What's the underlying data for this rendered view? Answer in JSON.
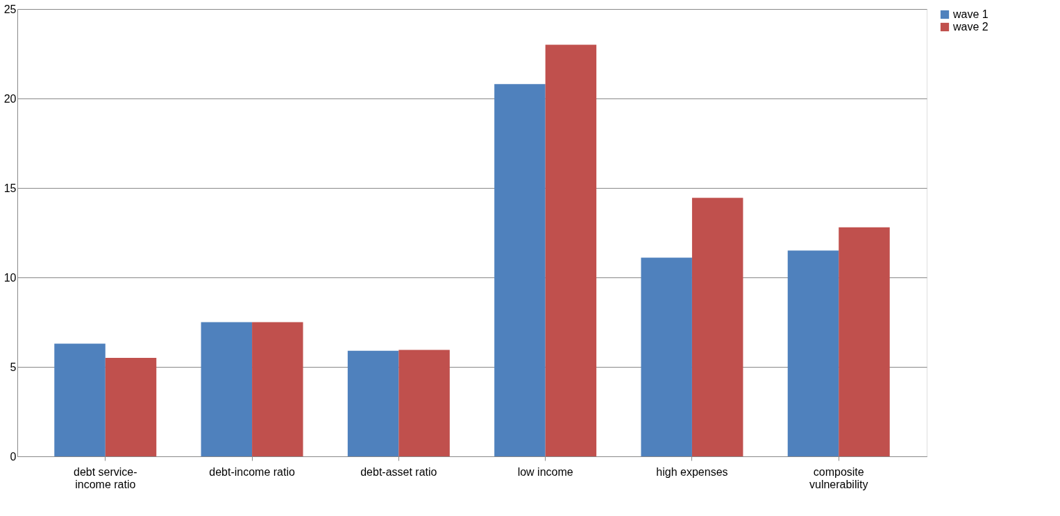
{
  "chart_data": {
    "type": "bar",
    "categories": [
      "debt service-income ratio",
      "debt-income ratio",
      "debt-asset ratio",
      "low income",
      "high expenses",
      "composite vulnerability"
    ],
    "series": [
      {
        "name": "wave 1",
        "color": "#4f81bd",
        "values": [
          6.3,
          7.5,
          5.9,
          20.8,
          11.1,
          11.5
        ]
      },
      {
        "name": "wave 2",
        "color": "#c0504d",
        "values": [
          5.5,
          7.5,
          5.95,
          23.0,
          14.45,
          12.8
        ]
      }
    ],
    "ylim": [
      0,
      25
    ],
    "yticks": [
      0,
      5,
      10,
      15,
      20,
      25
    ],
    "grid": "y",
    "legend": "right"
  }
}
